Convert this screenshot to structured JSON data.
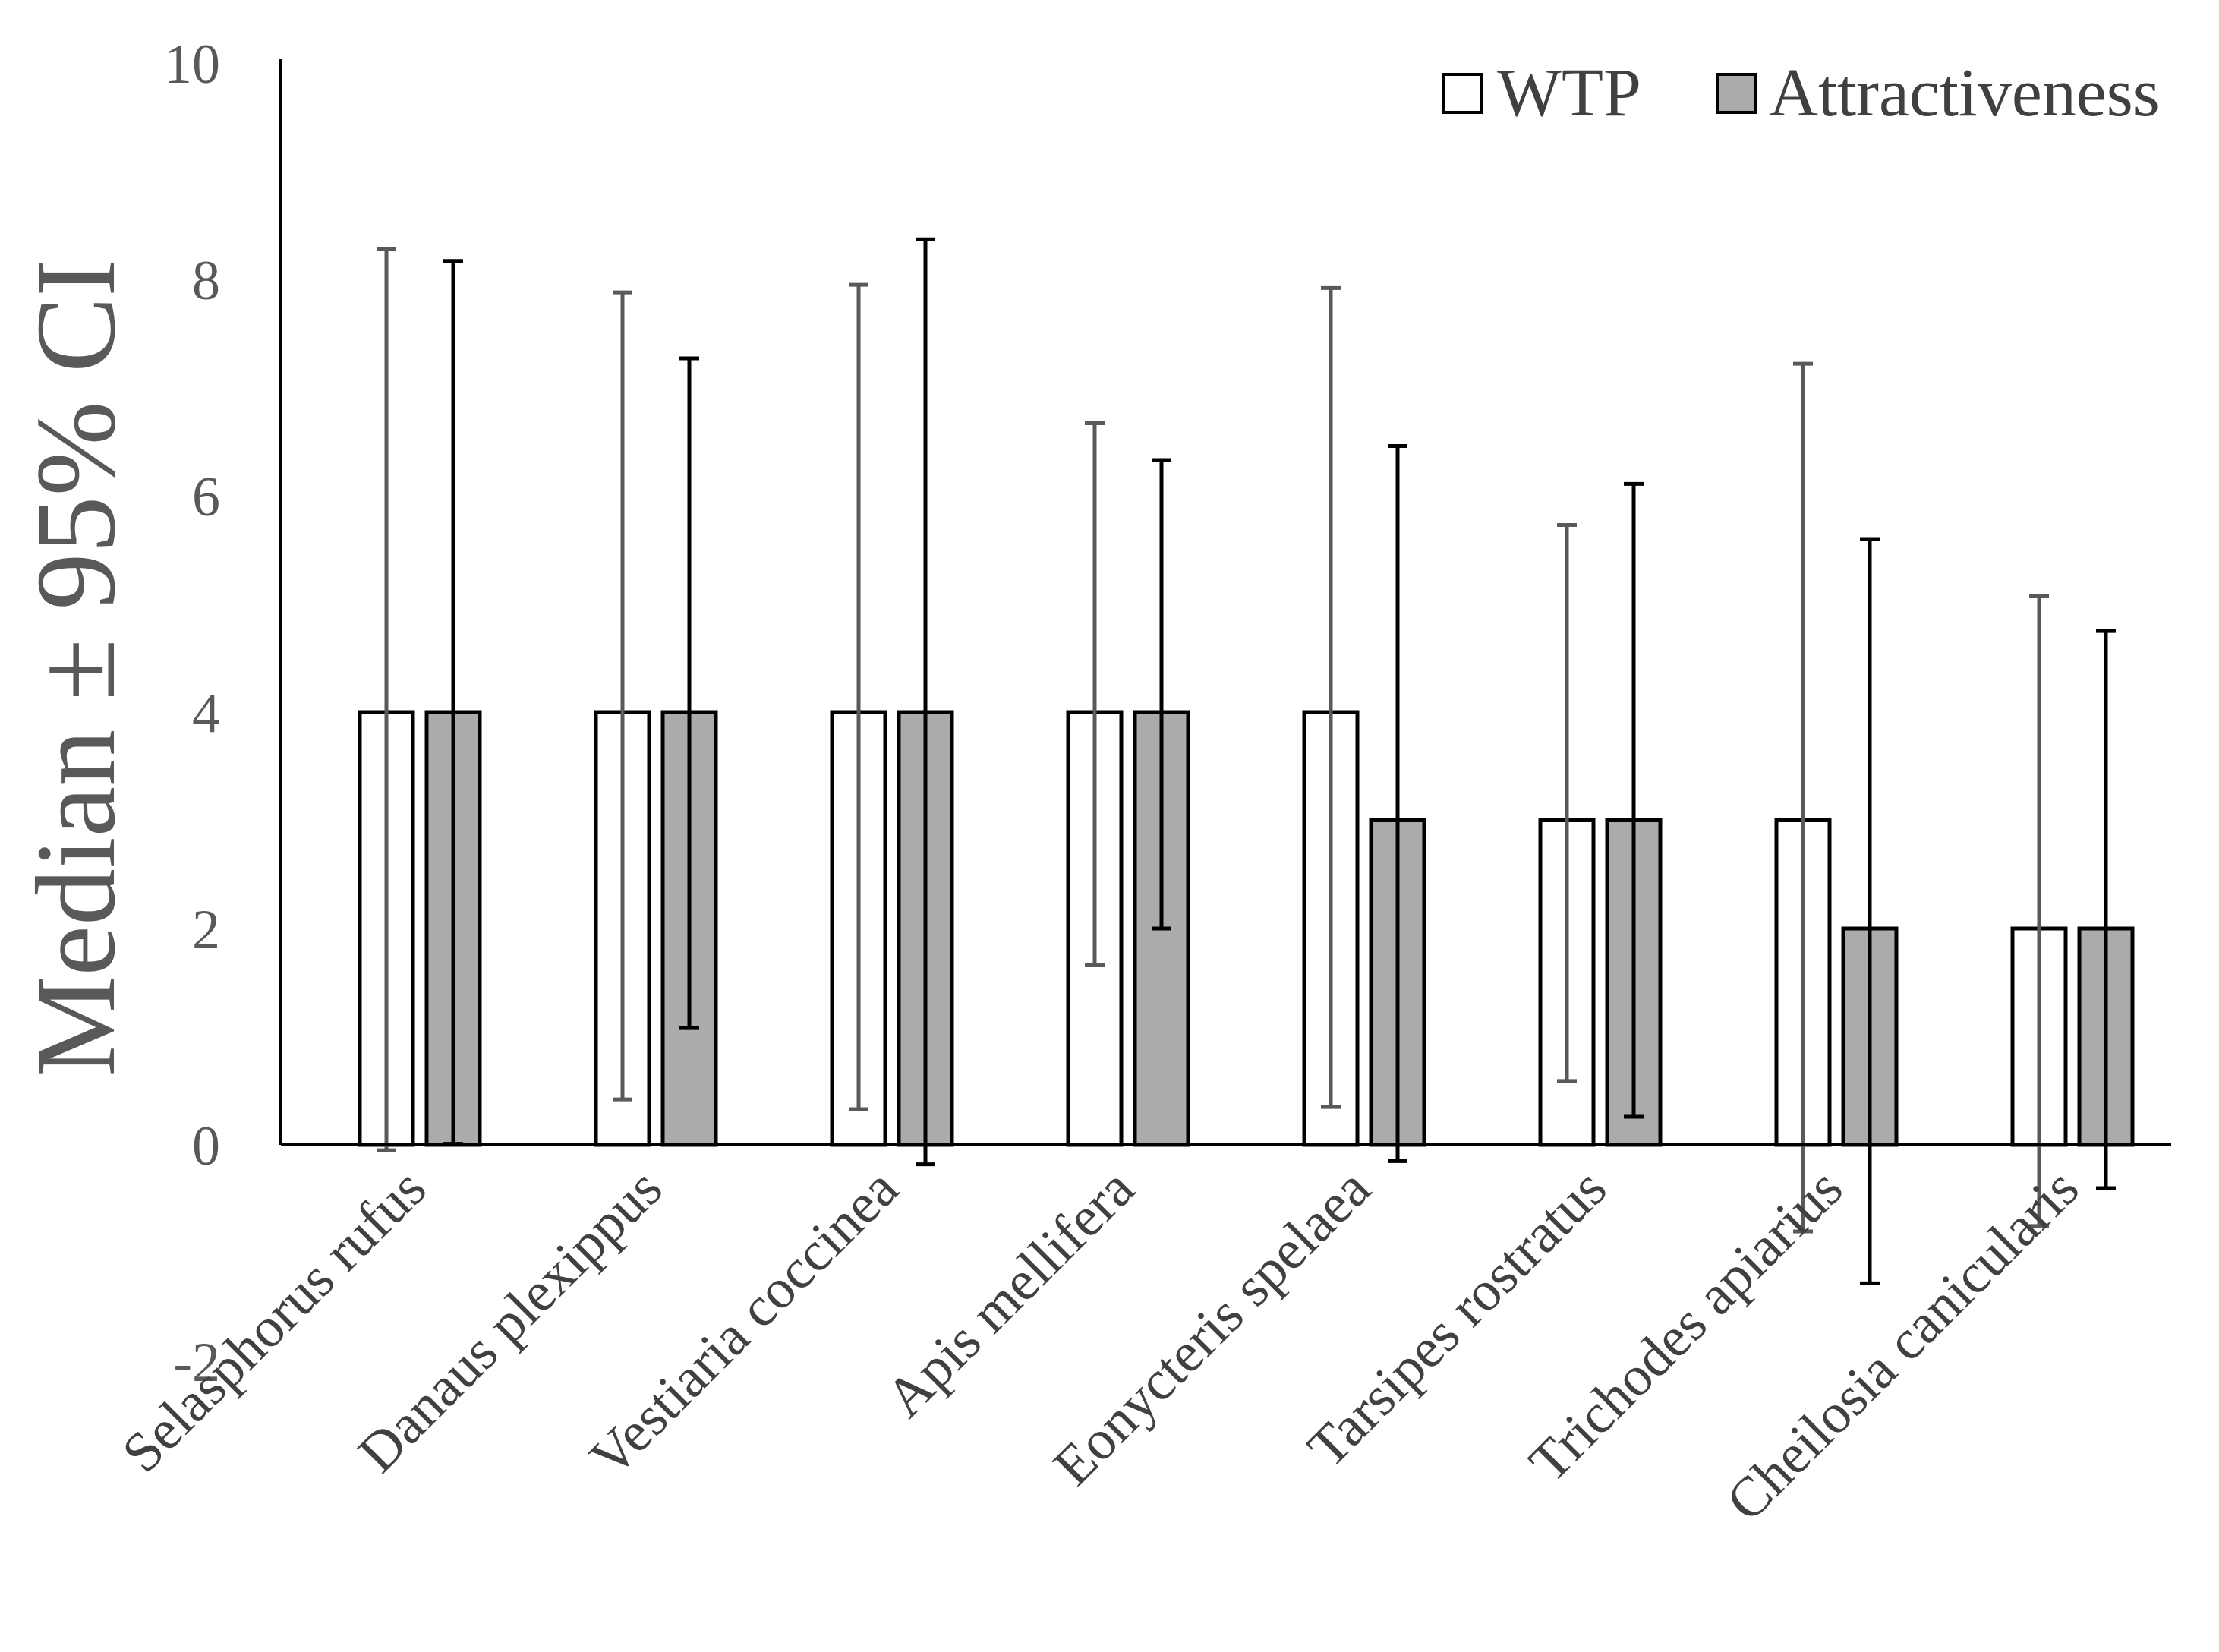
{
  "chart_data": {
    "type": "bar",
    "title": "",
    "xlabel": "",
    "ylabel": "Median ± 95% CI",
    "ylim": [
      -2,
      10
    ],
    "yticks": [
      -2,
      0,
      2,
      4,
      6,
      8,
      10
    ],
    "grid": false,
    "legend_position": "top-right",
    "categories": [
      "Selasphorus rufus",
      "Danaus plexippus",
      "Vestiaria coccinea",
      "Apis mellifera",
      "Eonycteris spelaea",
      "Tarsipes rostratus",
      "Trichodes apiarius",
      "Cheilosia canicularis"
    ],
    "series": [
      {
        "name": "WTP",
        "color": "#ffffff",
        "values": [
          4,
          4,
          4,
          4,
          4,
          3,
          3,
          2
        ],
        "ci_low": [
          -0.05,
          0.42,
          0.33,
          1.66,
          0.35,
          0.59,
          -0.8,
          -0.75
        ],
        "ci_high": [
          8.28,
          7.88,
          7.95,
          6.67,
          7.92,
          5.73,
          7.22,
          5.07
        ]
      },
      {
        "name": "Attractiveness",
        "color": "#ababab",
        "values": [
          4,
          4,
          4,
          4,
          3,
          3,
          2,
          2
        ],
        "ci_low": [
          0.01,
          1.08,
          -0.18,
          2.0,
          -0.15,
          0.26,
          -1.28,
          -0.4
        ],
        "ci_high": [
          8.17,
          7.27,
          8.37,
          6.33,
          6.46,
          6.11,
          5.6,
          4.75
        ]
      }
    ]
  }
}
